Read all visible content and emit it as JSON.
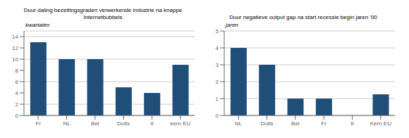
{
  "chart_data": [
    {
      "type": "bar",
      "title": "Duur daling bezettingsgraden verwerkende industrie na knappe\nInternetbubbels",
      "ylabel": "kwartalen",
      "categories": [
        "Fr",
        "NL",
        "Bel",
        "Duits",
        "It",
        "kern EU"
      ],
      "values": [
        13,
        10,
        10,
        5,
        4,
        9
      ],
      "ylim": [
        0,
        15
      ],
      "yticks": [
        0,
        2,
        4,
        6,
        8,
        10,
        12,
        14
      ],
      "color": "#1F4E79",
      "grid": true
    },
    {
      "type": "bar",
      "title": "Duur negatieve output gap na start recessie begin jaren '00",
      "ylabel": "jaren",
      "categories": [
        "NL",
        "Duits",
        "Bel",
        "Fr",
        "It",
        "Kern EU"
      ],
      "values": [
        4,
        3,
        1,
        1,
        0,
        1.25
      ],
      "ylim": [
        0,
        5
      ],
      "yticks": [
        0,
        1,
        2,
        3,
        4,
        5
      ],
      "color": "#1F4E79",
      "grid": true
    }
  ]
}
